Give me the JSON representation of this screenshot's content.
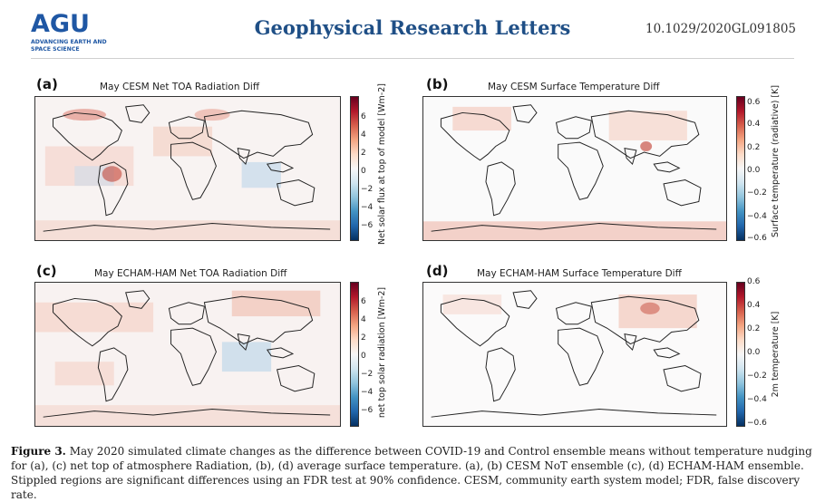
{
  "header": {
    "logo_text": "AGU",
    "logo_tagline": "ADVANCING EARTH AND SPACE SCIENCE",
    "journal": "Geophysical Research Letters",
    "doi": "10.1029/2020GL091805"
  },
  "panels": [
    {
      "label": "(a)",
      "title": "May CESM Net TOA Radiation Diff",
      "colorbar_label": "Net solar flux at top of model [Wm-2]",
      "ticks": [
        "6",
        "4",
        "2",
        "0",
        "−2",
        "−4",
        "−6"
      ]
    },
    {
      "label": "(b)",
      "title": "May CESM Surface Temperature Diff",
      "colorbar_label": "Surface temperature (radiative) [K]",
      "ticks": [
        "0.6",
        "0.4",
        "0.2",
        "0.0",
        "−0.2",
        "−0.4",
        "−0.6"
      ]
    },
    {
      "label": "(c)",
      "title": "May ECHAM-HAM Net TOA Radiation Diff",
      "colorbar_label": "net top solar radiation [Wm-2]",
      "ticks": [
        "6",
        "4",
        "2",
        "0",
        "−2",
        "−4",
        "−6"
      ]
    },
    {
      "label": "(d)",
      "title": "May ECHAM-HAM Surface Temperature Diff",
      "colorbar_label": "2m temperature [K]",
      "ticks": [
        "0.6",
        "0.4",
        "0.2",
        "0.0",
        "−0.2",
        "−0.4",
        "−0.6"
      ]
    }
  ],
  "caption": {
    "lead": "Figure 3.",
    "text": "May 2020 simulated climate changes as the difference between COVID-19 and Control ensemble means without temperature nudging for (a), (c) net top of atmosphere Radiation, (b), (d) average surface temperature. (a), (b) CESM NoT ensemble (c), (d) ECHAM-HAM ensemble. Stippled regions are significant differences using an FDR test at 90% confidence. CESM, community earth system model; FDR, false discovery rate."
  },
  "colors": {
    "journal_blue": "#1f4f86",
    "agu_blue": "#1f57a4"
  }
}
